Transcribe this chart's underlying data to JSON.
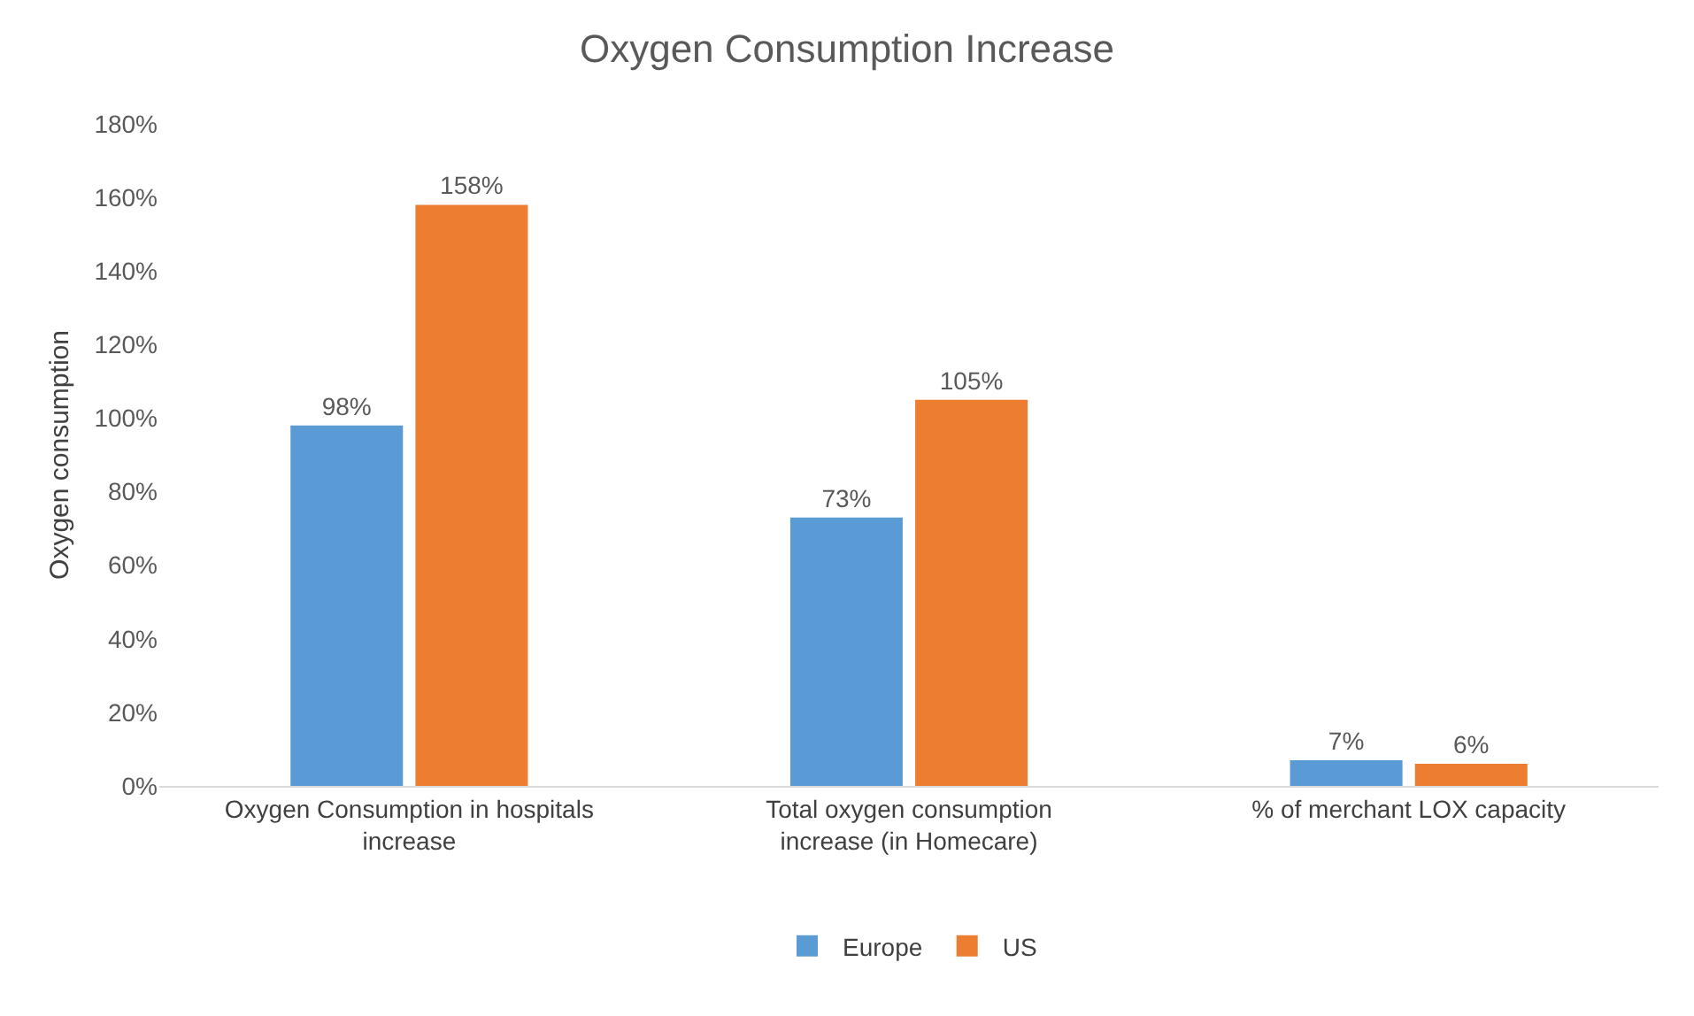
{
  "chart_data": {
    "type": "bar",
    "title": "Oxygen Consumption Increase",
    "ylabel": "Oxygen consumption",
    "categories": [
      "Oxygen Consumption in hospitals increase",
      "Total oxygen consumption increase (in Homecare)",
      "% of merchant LOX capacity"
    ],
    "series": [
      {
        "name": "Europe",
        "color": "#5b9bd5",
        "values": [
          98,
          73,
          7
        ],
        "value_labels": [
          "98%",
          "73%",
          "7%"
        ]
      },
      {
        "name": "US",
        "color": "#ed7d31",
        "values": [
          158,
          105,
          6
        ],
        "value_labels": [
          "158%",
          "105%",
          "6%"
        ]
      }
    ],
    "ylim": [
      0,
      180
    ],
    "yticks": [
      {
        "value": 0,
        "label": "0%"
      },
      {
        "value": 20,
        "label": "20%"
      },
      {
        "value": 40,
        "label": "40%"
      },
      {
        "value": 60,
        "label": "60%"
      },
      {
        "value": 80,
        "label": "80%"
      },
      {
        "value": 100,
        "label": "100%"
      },
      {
        "value": 120,
        "label": "120%"
      },
      {
        "value": 140,
        "label": "140%"
      },
      {
        "value": 160,
        "label": "160%"
      },
      {
        "value": 180,
        "label": "180%"
      }
    ],
    "grid": false,
    "legend": "bottom"
  }
}
